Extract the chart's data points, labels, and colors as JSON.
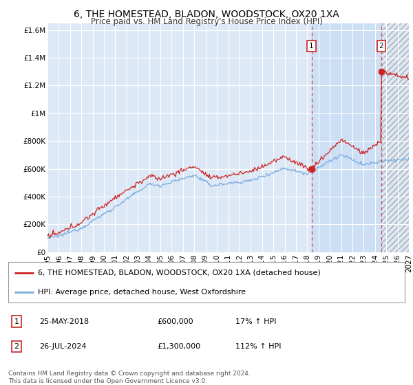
{
  "title": "6, THE HOMESTEAD, BLADON, WOODSTOCK, OX20 1XA",
  "subtitle": "Price paid vs. HM Land Registry's House Price Index (HPI)",
  "ylim": [
    0,
    1650000
  ],
  "yticks": [
    0,
    200000,
    400000,
    600000,
    800000,
    1000000,
    1200000,
    1400000,
    1600000
  ],
  "ytick_labels": [
    "£0",
    "£200K",
    "£400K",
    "£600K",
    "£800K",
    "£1M",
    "£1.2M",
    "£1.4M",
    "£1.6M"
  ],
  "x_start_year": 1995,
  "x_end_year": 2027,
  "xticks": [
    1995,
    1996,
    1997,
    1998,
    1999,
    2000,
    2001,
    2002,
    2003,
    2004,
    2005,
    2006,
    2007,
    2008,
    2009,
    2010,
    2011,
    2012,
    2013,
    2014,
    2015,
    2016,
    2017,
    2018,
    2019,
    2020,
    2021,
    2022,
    2023,
    2024,
    2025,
    2026,
    2027
  ],
  "hpi_color": "#7aaadd",
  "price_color": "#cc2222",
  "figure_bg": "#ffffff",
  "plot_bg": "#dce8f5",
  "grid_color": "#ffffff",
  "legend_label_price": "6, THE HOMESTEAD, BLADON, WOODSTOCK, OX20 1XA (detached house)",
  "legend_label_hpi": "HPI: Average price, detached house, West Oxfordshire",
  "sale1_year": 2018.38,
  "sale1_price": 600000,
  "sale1_label": "1",
  "sale1_date": "25-MAY-2018",
  "sale1_pct": "17% ↑ HPI",
  "sale2_year": 2024.56,
  "sale2_price": 1300000,
  "sale2_label": "2",
  "sale2_date": "26-JUL-2024",
  "sale2_pct": "112% ↑ HPI",
  "footer": "Contains HM Land Registry data © Crown copyright and database right 2024.\nThis data is licensed under the Open Government Licence v3.0.",
  "title_fontsize": 10,
  "subtitle_fontsize": 8.5,
  "tick_fontsize": 7.5,
  "legend_fontsize": 8,
  "note_fontsize": 6.5
}
